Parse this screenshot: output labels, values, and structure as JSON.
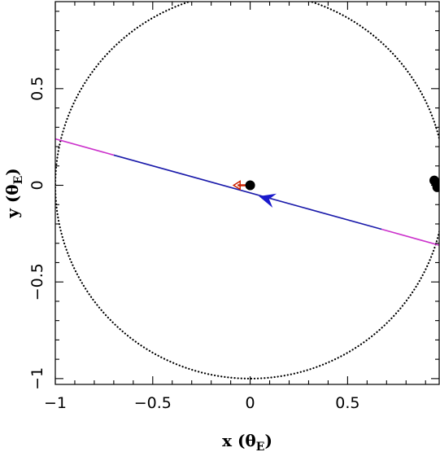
{
  "chart_data": {
    "type": "scatter",
    "xlabel": "x (θ",
    "xlabel_sub": "E",
    "xlabel_close": ")",
    "ylabel": "y (θ",
    "ylabel_sub": "E",
    "ylabel_close": ")",
    "xlim": [
      -1.0,
      0.97
    ],
    "ylim": [
      -1.03,
      0.95
    ],
    "x_major_ticks": [
      -1,
      -0.5,
      0,
      0.5
    ],
    "x_tick_labels": [
      "−1",
      "−0.5",
      "0",
      "0.5"
    ],
    "y_major_ticks": [
      -1,
      -0.5,
      0,
      0.5
    ],
    "y_tick_labels": [
      "−1",
      "−0.5",
      "0",
      "0.5"
    ],
    "minor_tick_step": 0.1,
    "einstein_ring": {
      "center": [
        0,
        0
      ],
      "radius": 1.0,
      "style": "dotted",
      "color": "#000000"
    },
    "source_trajectory": {
      "start": [
        -1.0,
        0.24
      ],
      "end": [
        0.97,
        -0.31
      ],
      "inner_segment": [
        -0.7,
        0.675
      ],
      "outer_color": "#cc33cc",
      "inner_color": "#1a1aaa",
      "arrow_at": [
        0.045,
        -0.057
      ],
      "arrow_color": "#1a1acc"
    },
    "lens_points": [
      {
        "x": 0.0,
        "y": 0.0,
        "color": "#000000"
      },
      {
        "x": 0.945,
        "y": 0.025,
        "color": "#000000"
      },
      {
        "x": 0.955,
        "y": 0.01,
        "color": "#000000"
      },
      {
        "x": 0.96,
        "y": -0.01,
        "color": "#000000"
      }
    ],
    "lens_motion": {
      "from": [
        0.0,
        0.0
      ],
      "to": [
        -0.085,
        0.0
      ],
      "color": "#cc2200"
    }
  }
}
